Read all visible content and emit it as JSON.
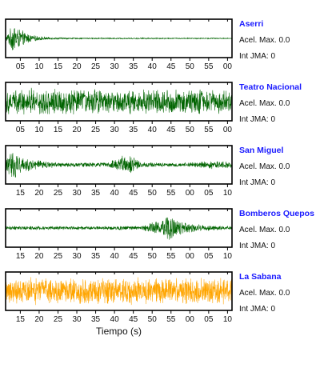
{
  "chart_data": {
    "type": "line",
    "xlabel": "Tiempo (s)",
    "grid": false,
    "panels": [
      {
        "station": "Aserri",
        "pga_label": "Acel. Max. 0.0",
        "jma_label": "Int JMA: 0",
        "color": "#006400",
        "tick_labels": [
          "05",
          "10",
          "15",
          "20",
          "25",
          "30",
          "35",
          "40",
          "45",
          "50",
          "55",
          "00"
        ],
        "envelope": [
          [
            0,
            0.05
          ],
          [
            0.02,
            0.55
          ],
          [
            0.04,
            0.95
          ],
          [
            0.06,
            0.55
          ],
          [
            0.09,
            0.35
          ],
          [
            0.12,
            0.18
          ],
          [
            0.18,
            0.08
          ],
          [
            0.3,
            0.04
          ],
          [
            1,
            0.03
          ]
        ]
      },
      {
        "station": "Teatro Nacional",
        "pga_label": "Acel. Max. 0.0",
        "jma_label": "Int JMA: 0",
        "color": "#006400",
        "tick_labels": [
          "05",
          "10",
          "15",
          "20",
          "25",
          "30",
          "35",
          "40",
          "45",
          "50",
          "55",
          "00"
        ],
        "envelope": [
          [
            0,
            0.7
          ],
          [
            0.1,
            0.8
          ],
          [
            0.3,
            0.75
          ],
          [
            0.5,
            0.7
          ],
          [
            0.7,
            0.72
          ],
          [
            0.9,
            0.75
          ],
          [
            1,
            0.7
          ]
        ]
      },
      {
        "station": "San Miguel",
        "pga_label": "Acel. Max. 0.0",
        "jma_label": "Int JMA: 0",
        "color": "#006400",
        "tick_labels": [
          "15",
          "20",
          "25",
          "30",
          "35",
          "40",
          "45",
          "50",
          "55",
          "00",
          "05",
          "10"
        ],
        "envelope": [
          [
            0,
            0.35
          ],
          [
            0.03,
            0.9
          ],
          [
            0.06,
            0.6
          ],
          [
            0.12,
            0.3
          ],
          [
            0.25,
            0.12
          ],
          [
            0.45,
            0.14
          ],
          [
            0.52,
            0.55
          ],
          [
            0.56,
            0.5
          ],
          [
            0.6,
            0.15
          ],
          [
            0.8,
            0.12
          ],
          [
            0.9,
            0.25
          ],
          [
            1,
            0.18
          ]
        ]
      },
      {
        "station": "Bomberos Quepos",
        "pga_label": "Acel. Max. 0.0",
        "jma_label": "Int JMA: 0",
        "color": "#006400",
        "tick_labels": [
          "15",
          "20",
          "25",
          "30",
          "35",
          "40",
          "45",
          "50",
          "55",
          "00",
          "05",
          "10"
        ],
        "envelope": [
          [
            0,
            0.12
          ],
          [
            0.3,
            0.1
          ],
          [
            0.6,
            0.12
          ],
          [
            0.68,
            0.45
          ],
          [
            0.72,
            0.8
          ],
          [
            0.76,
            0.45
          ],
          [
            0.85,
            0.2
          ],
          [
            1,
            0.1
          ]
        ]
      },
      {
        "station": "La Sabana",
        "pga_label": "Acel. Max. 0.0",
        "jma_label": "Int JMA: 0",
        "color": "#FFA500",
        "tick_labels": [
          "15",
          "20",
          "25",
          "30",
          "35",
          "40",
          "45",
          "50",
          "55",
          "00",
          "05",
          "10"
        ],
        "envelope": [
          [
            0,
            0.75
          ],
          [
            0.2,
            0.8
          ],
          [
            0.32,
            0.75
          ],
          [
            0.34,
            1.0
          ],
          [
            0.36,
            0.75
          ],
          [
            0.6,
            0.8
          ],
          [
            0.8,
            0.75
          ],
          [
            1,
            0.8
          ]
        ]
      }
    ]
  }
}
